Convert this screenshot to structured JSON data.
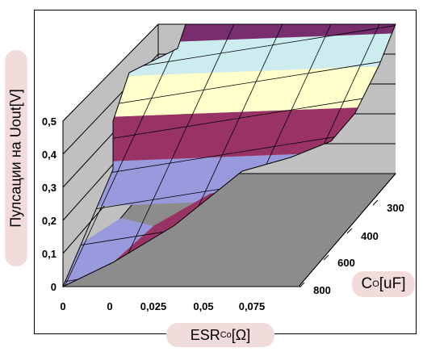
{
  "chart_data": {
    "type": "surface-3d",
    "ylabel": "Пулсации на Uout[V]",
    "xlabel": {
      "main": "ESR",
      "sub": "Co",
      "unit": "[Ω]"
    },
    "zlabel": {
      "main": "C",
      "sub": "O",
      "unit": "[uF]"
    },
    "x_ticks": [
      "0",
      "0",
      "0,025",
      "0,05",
      "0,075"
    ],
    "z_ticks": [
      "300",
      "400",
      "600",
      "800"
    ],
    "y_ticks": [
      "0",
      "0,1",
      "0,2",
      "0,3",
      "0,4",
      "0,5"
    ],
    "ylim": [
      0,
      0.6
    ],
    "band_colors": [
      "#9999dd",
      "#993366",
      "#ffffcc",
      "#ccecf0",
      "#772d6e"
    ],
    "colors": {
      "wall": "#c0c0c0",
      "floor": "#8c8c8c",
      "label_pill": "#f2dcdb"
    }
  }
}
